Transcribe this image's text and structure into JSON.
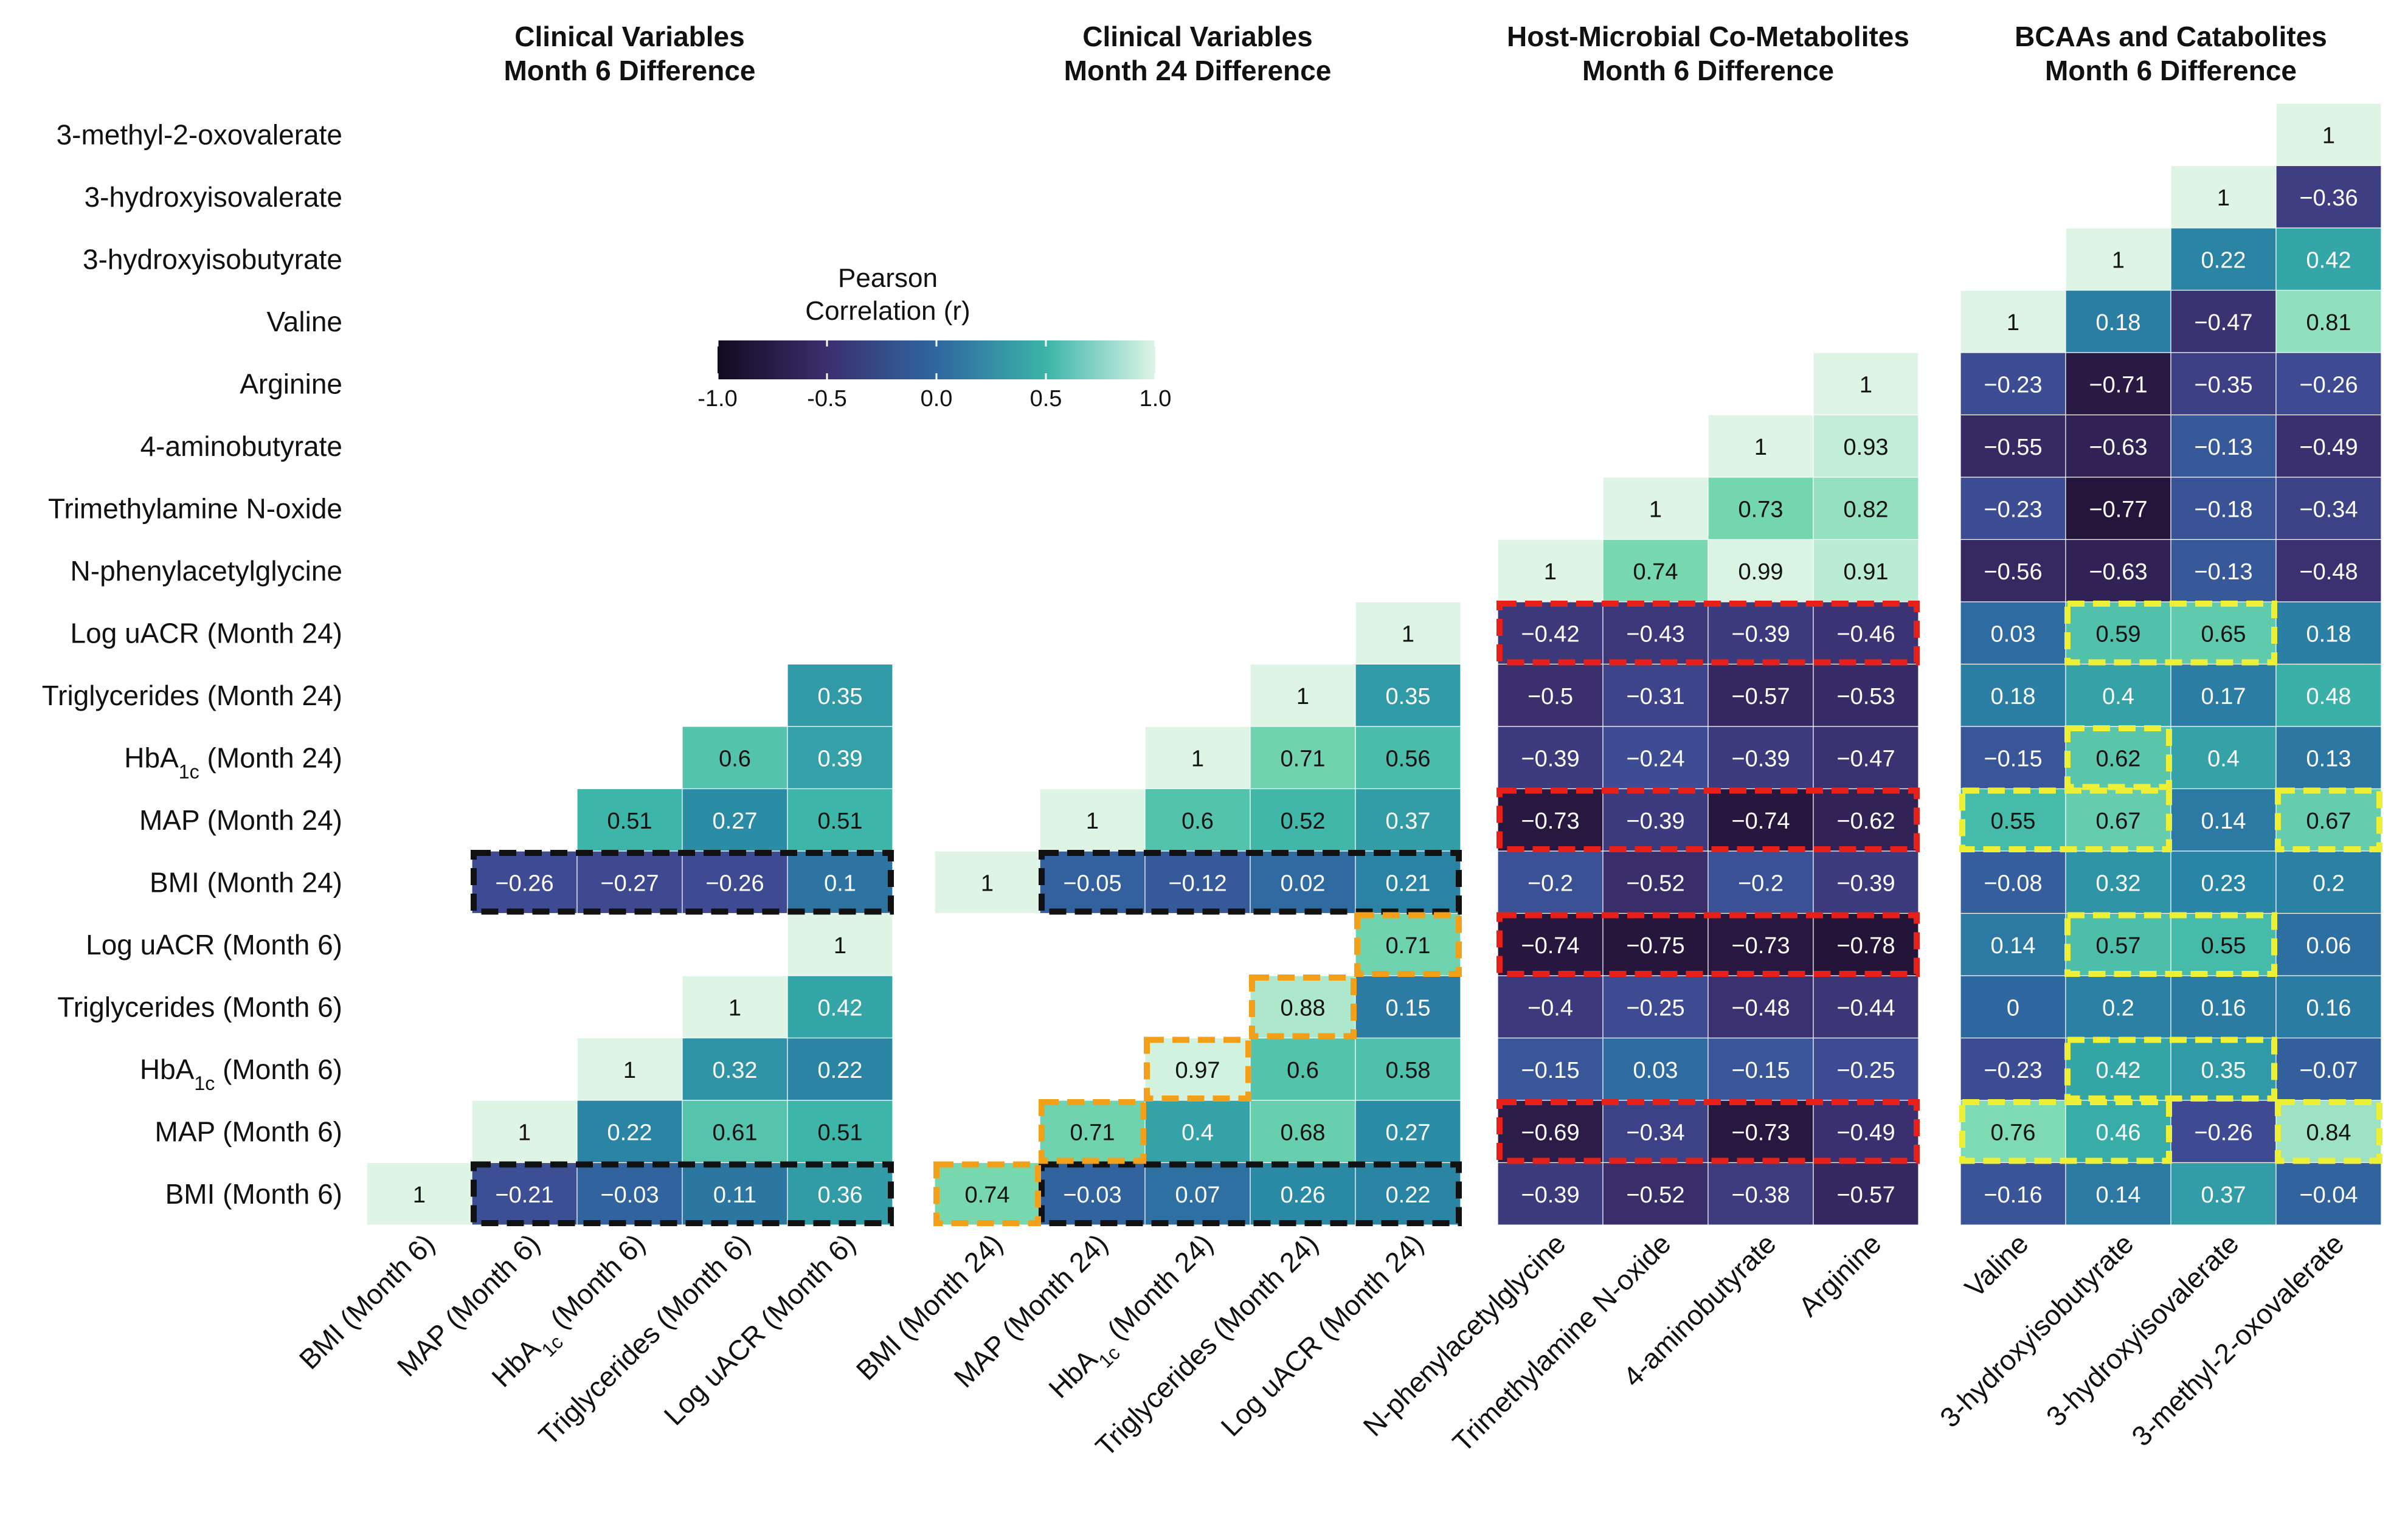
{
  "chart_data": {
    "type": "heatmap",
    "legend": {
      "title_lines": [
        "Pearson",
        "Correlation (r)"
      ],
      "ticks": [
        "-1.0",
        "-0.5",
        "0.0",
        "0.5",
        "1.0"
      ],
      "tick_values": [
        -1.0,
        -0.5,
        0.0,
        0.5,
        1.0
      ],
      "range": [
        -1.0,
        1.0
      ]
    },
    "rows": [
      "3-methyl-2-oxovalerate",
      "3-hydroxyisovalerate",
      "3-hydroxyisobutyrate",
      "Valine",
      "Arginine",
      "4-aminobutyrate",
      "Trimethylamine N-oxide",
      "N-phenylacetylglycine",
      "Log uACR (Month 24)",
      "Triglycerides (Month 24)",
      "HbA1c (Month 24)",
      "MAP (Month 24)",
      "BMI (Month 24)",
      "Log uACR (Month 6)",
      "Triglycerides (Month 6)",
      "HbA1c (Month 6)",
      "MAP (Month 6)",
      "BMI (Month 6)"
    ],
    "panels": [
      {
        "title_lines": [
          "Clinical Variables",
          "Month 6 Difference"
        ],
        "columns": [
          "BMI (Month 6)",
          "MAP (Month 6)",
          "HbA1c (Month 6)",
          "Triglycerides (Month 6)",
          "Log uACR (Month 6)"
        ],
        "values": [
          [
            null,
            null,
            null,
            null,
            null
          ],
          [
            null,
            null,
            null,
            null,
            null
          ],
          [
            null,
            null,
            null,
            null,
            null
          ],
          [
            null,
            null,
            null,
            null,
            null
          ],
          [
            null,
            null,
            null,
            null,
            null
          ],
          [
            null,
            null,
            null,
            null,
            null
          ],
          [
            null,
            null,
            null,
            null,
            null
          ],
          [
            null,
            null,
            null,
            null,
            null
          ],
          [
            null,
            null,
            null,
            null,
            null
          ],
          [
            null,
            null,
            null,
            null,
            0.35
          ],
          [
            null,
            null,
            null,
            0.6,
            0.39
          ],
          [
            null,
            null,
            0.51,
            0.27,
            0.51
          ],
          [
            null,
            -0.26,
            -0.27,
            -0.26,
            0.1
          ],
          [
            null,
            null,
            null,
            null,
            1
          ],
          [
            null,
            null,
            null,
            1,
            0.42
          ],
          [
            null,
            null,
            1,
            0.32,
            0.22
          ],
          [
            null,
            1,
            0.22,
            0.61,
            0.51
          ],
          [
            1,
            -0.21,
            -0.03,
            0.11,
            0.36
          ]
        ],
        "labels": [
          [],
          [],
          [],
          [],
          [],
          [],
          [],
          [],
          [],
          [
            "",
            "",
            "",
            "",
            "0.35"
          ],
          [
            "",
            "",
            "",
            "0.6",
            "0.39"
          ],
          [
            "",
            "",
            "0.51",
            "0.27",
            "0.51"
          ],
          [
            "",
            "−0.26",
            "−0.27",
            "−0.26",
            "0.1"
          ],
          [
            "",
            "",
            "",
            "",
            "1"
          ],
          [
            "",
            "",
            "",
            "1",
            "0.42"
          ],
          [
            "",
            "",
            "1",
            "0.32",
            "0.22"
          ],
          [
            "",
            "1",
            "0.22",
            "0.61",
            "0.51"
          ],
          [
            "1",
            "−0.21",
            "−0.03",
            "0.11",
            "0.36"
          ]
        ],
        "highlights": [
          {
            "color": "black",
            "row_start": 12,
            "row_end": 12,
            "col_start": 1,
            "col_end": 4
          },
          {
            "color": "black",
            "row_start": 17,
            "row_end": 17,
            "col_start": 1,
            "col_end": 4
          }
        ]
      },
      {
        "title_lines": [
          "Clinical Variables",
          "Month 24 Difference"
        ],
        "columns": [
          "BMI (Month 24)",
          "MAP (Month 24)",
          "HbA1c (Month 24)",
          "Triglycerides (Month 24)",
          "Log uACR (Month 24)"
        ],
        "values": [
          [
            null,
            null,
            null,
            null,
            null
          ],
          [
            null,
            null,
            null,
            null,
            null
          ],
          [
            null,
            null,
            null,
            null,
            null
          ],
          [
            null,
            null,
            null,
            null,
            null
          ],
          [
            null,
            null,
            null,
            null,
            null
          ],
          [
            null,
            null,
            null,
            null,
            null
          ],
          [
            null,
            null,
            null,
            null,
            null
          ],
          [
            null,
            null,
            null,
            null,
            null
          ],
          [
            null,
            null,
            null,
            null,
            1
          ],
          [
            null,
            null,
            null,
            1,
            0.35
          ],
          [
            null,
            null,
            1,
            0.71,
            0.56
          ],
          [
            null,
            1,
            0.6,
            0.52,
            0.37
          ],
          [
            1,
            -0.05,
            -0.12,
            0.02,
            0.21
          ],
          [
            null,
            null,
            null,
            null,
            0.71
          ],
          [
            null,
            null,
            null,
            0.88,
            0.15
          ],
          [
            null,
            null,
            0.97,
            0.6,
            0.58
          ],
          [
            null,
            0.71,
            0.4,
            0.68,
            0.27
          ],
          [
            0.74,
            -0.03,
            0.07,
            0.26,
            0.22
          ]
        ],
        "labels": [
          [],
          [],
          [],
          [],
          [],
          [],
          [],
          [],
          [
            "",
            "",
            "",
            "",
            "1"
          ],
          [
            "",
            "",
            "",
            "1",
            "0.35"
          ],
          [
            "",
            "",
            "1",
            "0.71",
            "0.56"
          ],
          [
            "",
            "1",
            "0.6",
            "0.52",
            "0.37"
          ],
          [
            "1",
            "−0.05",
            "−0.12",
            "0.02",
            "0.21"
          ],
          [
            "",
            "",
            "",
            "",
            "0.71"
          ],
          [
            "",
            "",
            "",
            "0.88",
            "0.15"
          ],
          [
            "",
            "",
            "0.97",
            "0.6",
            "0.58"
          ],
          [
            "",
            "0.71",
            "0.4",
            "0.68",
            "0.27"
          ],
          [
            "0.74",
            "−0.03",
            "0.07",
            "0.26",
            "0.22"
          ]
        ],
        "highlights": [
          {
            "color": "black",
            "row_start": 12,
            "row_end": 12,
            "col_start": 1,
            "col_end": 4
          },
          {
            "color": "black",
            "row_start": 17,
            "row_end": 17,
            "col_start": 1,
            "col_end": 4
          },
          {
            "color": "orange",
            "row_start": 13,
            "row_end": 13,
            "col_start": 4,
            "col_end": 4
          },
          {
            "color": "orange",
            "row_start": 14,
            "row_end": 14,
            "col_start": 3,
            "col_end": 3
          },
          {
            "color": "orange",
            "row_start": 15,
            "row_end": 15,
            "col_start": 2,
            "col_end": 2
          },
          {
            "color": "orange",
            "row_start": 16,
            "row_end": 16,
            "col_start": 1,
            "col_end": 1
          },
          {
            "color": "orange",
            "row_start": 17,
            "row_end": 17,
            "col_start": 0,
            "col_end": 0
          }
        ]
      },
      {
        "title_lines": [
          "Host-Microbial Co-Metabolites",
          "Month 6 Difference"
        ],
        "columns": [
          "N-phenylacetylglycine",
          "Trimethylamine N-oxide",
          "4-aminobutyrate",
          "Arginine"
        ],
        "values": [
          [
            null,
            null,
            null,
            null
          ],
          [
            null,
            null,
            null,
            null
          ],
          [
            null,
            null,
            null,
            null
          ],
          [
            null,
            null,
            null,
            null
          ],
          [
            null,
            null,
            null,
            1
          ],
          [
            null,
            null,
            1,
            0.93
          ],
          [
            null,
            1,
            0.73,
            0.82
          ],
          [
            1,
            0.74,
            0.99,
            0.91
          ],
          [
            -0.42,
            -0.43,
            -0.39,
            -0.46
          ],
          [
            -0.5,
            -0.31,
            -0.57,
            -0.53
          ],
          [
            -0.39,
            -0.24,
            -0.39,
            -0.47
          ],
          [
            -0.73,
            -0.39,
            -0.74,
            -0.62
          ],
          [
            -0.2,
            -0.52,
            -0.2,
            -0.39
          ],
          [
            -0.74,
            -0.75,
            -0.73,
            -0.78
          ],
          [
            -0.4,
            -0.25,
            -0.48,
            -0.44
          ],
          [
            -0.15,
            0.03,
            -0.15,
            -0.25
          ],
          [
            -0.69,
            -0.34,
            -0.73,
            -0.49
          ],
          [
            -0.39,
            -0.52,
            -0.38,
            -0.57
          ]
        ],
        "labels": [
          [],
          [],
          [],
          [],
          [
            "",
            "",
            "",
            "1"
          ],
          [
            "",
            "",
            "1",
            "0.93"
          ],
          [
            "",
            "1",
            "0.73",
            "0.82"
          ],
          [
            "1",
            "0.74",
            "0.99",
            "0.91"
          ],
          [
            "−0.42",
            "−0.43",
            "−0.39",
            "−0.46"
          ],
          [
            "−0.5",
            "−0.31",
            "−0.57",
            "−0.53"
          ],
          [
            "−0.39",
            "−0.24",
            "−0.39",
            "−0.47"
          ],
          [
            "−0.73",
            "−0.39",
            "−0.74",
            "−0.62"
          ],
          [
            "−0.2",
            "−0.52",
            "−0.2",
            "−0.39"
          ],
          [
            "−0.74",
            "−0.75",
            "−0.73",
            "−0.78"
          ],
          [
            "−0.4",
            "−0.25",
            "−0.48",
            "−0.44"
          ],
          [
            "−0.15",
            "0.03",
            "−0.15",
            "−0.25"
          ],
          [
            "−0.69",
            "−0.34",
            "−0.73",
            "−0.49"
          ],
          [
            "−0.39",
            "−0.52",
            "−0.38",
            "−0.57"
          ]
        ],
        "highlights": [
          {
            "color": "red",
            "row_start": 8,
            "row_end": 8,
            "col_start": 0,
            "col_end": 3
          },
          {
            "color": "red",
            "row_start": 11,
            "row_end": 11,
            "col_start": 0,
            "col_end": 3
          },
          {
            "color": "red",
            "row_start": 13,
            "row_end": 13,
            "col_start": 0,
            "col_end": 3
          },
          {
            "color": "red",
            "row_start": 16,
            "row_end": 16,
            "col_start": 0,
            "col_end": 3
          }
        ]
      },
      {
        "title_lines": [
          "BCAAs and Catabolites",
          "Month 6 Difference"
        ],
        "columns": [
          "Valine",
          "3-hydroxyisobutyrate",
          "3-hydroxyisovalerate",
          "3-methyl-2-oxovalerate"
        ],
        "values": [
          [
            null,
            null,
            null,
            1
          ],
          [
            null,
            null,
            1,
            -0.36
          ],
          [
            null,
            1,
            0.22,
            0.42
          ],
          [
            1,
            0.18,
            -0.47,
            0.81
          ],
          [
            -0.23,
            -0.71,
            -0.35,
            -0.26
          ],
          [
            -0.55,
            -0.63,
            -0.13,
            -0.49
          ],
          [
            -0.23,
            -0.77,
            -0.18,
            -0.34
          ],
          [
            -0.56,
            -0.63,
            -0.13,
            -0.48
          ],
          [
            0.03,
            0.59,
            0.65,
            0.18
          ],
          [
            0.18,
            0.4,
            0.17,
            0.48
          ],
          [
            -0.15,
            0.62,
            0.4,
            0.13
          ],
          [
            0.55,
            0.67,
            0.14,
            0.67
          ],
          [
            -0.08,
            0.32,
            0.23,
            0.2
          ],
          [
            0.14,
            0.57,
            0.55,
            0.06
          ],
          [
            0,
            0.2,
            0.16,
            0.16
          ],
          [
            -0.23,
            0.42,
            0.35,
            -0.07
          ],
          [
            0.76,
            0.46,
            -0.26,
            0.84
          ],
          [
            -0.16,
            0.14,
            0.37,
            -0.04
          ]
        ],
        "labels": [
          [
            "",
            "",
            "",
            "1"
          ],
          [
            "",
            "",
            "1",
            "−0.36"
          ],
          [
            "",
            "1",
            "0.22",
            "0.42"
          ],
          [
            "1",
            "0.18",
            "−0.47",
            "0.81"
          ],
          [
            "−0.23",
            "−0.71",
            "−0.35",
            "−0.26"
          ],
          [
            "−0.55",
            "−0.63",
            "−0.13",
            "−0.49"
          ],
          [
            "−0.23",
            "−0.77",
            "−0.18",
            "−0.34"
          ],
          [
            "−0.56",
            "−0.63",
            "−0.13",
            "−0.48"
          ],
          [
            "0.03",
            "0.59",
            "0.65",
            "0.18"
          ],
          [
            "0.18",
            "0.4",
            "0.17",
            "0.48"
          ],
          [
            "−0.15",
            "0.62",
            "0.4",
            "0.13"
          ],
          [
            "0.55",
            "0.67",
            "0.14",
            "0.67"
          ],
          [
            "−0.08",
            "0.32",
            "0.23",
            "0.2"
          ],
          [
            "0.14",
            "0.57",
            "0.55",
            "0.06"
          ],
          [
            "0",
            "0.2",
            "0.16",
            "0.16"
          ],
          [
            "−0.23",
            "0.42",
            "0.35",
            "−0.07"
          ],
          [
            "0.76",
            "0.46",
            "−0.26",
            "0.84"
          ],
          [
            "−0.16",
            "0.14",
            "0.37",
            "−0.04"
          ]
        ],
        "highlights": [
          {
            "color": "yellow",
            "row_start": 8,
            "row_end": 8,
            "col_start": 1,
            "col_end": 2
          },
          {
            "color": "yellow",
            "row_start": 10,
            "row_end": 10,
            "col_start": 1,
            "col_end": 1
          },
          {
            "color": "yellow",
            "row_start": 11,
            "row_end": 11,
            "col_start": 0,
            "col_end": 1
          },
          {
            "color": "yellow",
            "row_start": 11,
            "row_end": 11,
            "col_start": 3,
            "col_end": 3
          },
          {
            "color": "yellow",
            "row_start": 13,
            "row_end": 13,
            "col_start": 1,
            "col_end": 2
          },
          {
            "color": "yellow",
            "row_start": 15,
            "row_end": 15,
            "col_start": 1,
            "col_end": 2
          },
          {
            "color": "yellow",
            "row_start": 16,
            "row_end": 16,
            "col_start": 0,
            "col_end": 1
          },
          {
            "color": "yellow",
            "row_start": 16,
            "row_end": 16,
            "col_start": 3,
            "col_end": 3
          }
        ]
      }
    ],
    "colormap": {
      "-1.0": "#120b1e",
      "-0.5": "#3b2f6e",
      "0.0": "#2f67a0",
      "0.5": "#3bb4a8",
      "1.0": "#def5e6"
    },
    "highlight_colors": {
      "black": "#111111",
      "orange": "#f2a01a",
      "red": "#e8201a",
      "yellow": "#eef038"
    }
  }
}
